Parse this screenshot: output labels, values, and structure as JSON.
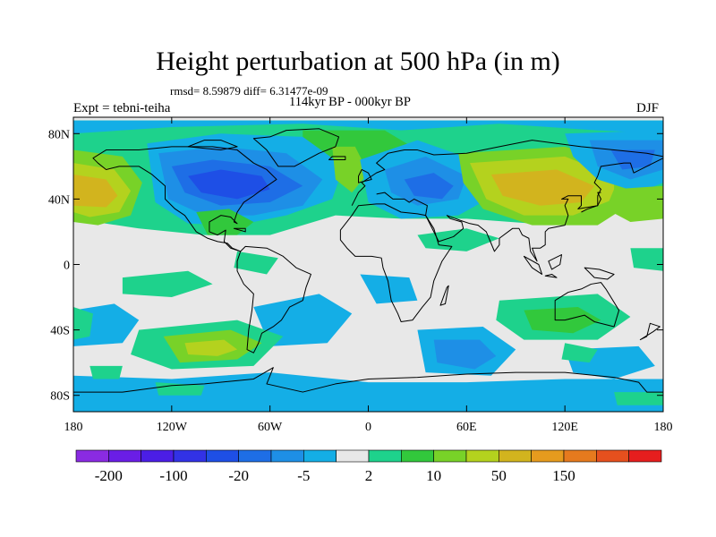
{
  "title": "Height perturbation at 500 hPa (in m)",
  "stats": "rmsd= 8.59879 diff= 6.31477e-09",
  "period": "114kyr BP - 000kyr BP",
  "experiment": "Expt = tebni-teiha",
  "season": "DJF",
  "lat_ticks": [
    {
      "label": "80N",
      "lat": 80
    },
    {
      "label": "40N",
      "lat": 40
    },
    {
      "label": "0",
      "lat": 0
    },
    {
      "label": "40S",
      "lat": -40
    },
    {
      "label": "80S",
      "lat": -80
    }
  ],
  "lon_ticks": [
    {
      "label": "180",
      "lon": -180
    },
    {
      "label": "120W",
      "lon": -120
    },
    {
      "label": "60W",
      "lon": -60
    },
    {
      "label": "0",
      "lon": 0
    },
    {
      "label": "60E",
      "lon": 60
    },
    {
      "label": "120E",
      "lon": 120
    },
    {
      "label": "180",
      "lon": 180
    }
  ],
  "colorbar": {
    "colors": [
      "#8a2be2",
      "#6a1ee6",
      "#4b1ee6",
      "#3232e6",
      "#1e4fe6",
      "#1e6ee6",
      "#1e8fe6",
      "#14aee6",
      "#e8e8e8",
      "#1ed28c",
      "#32c83c",
      "#78d228",
      "#b4d21e",
      "#d2b41e",
      "#e69b1e",
      "#e67a1e",
      "#e6501e",
      "#e61e1e"
    ],
    "labels": [
      "-200",
      "-100",
      "-20",
      "-5",
      "2",
      "10",
      "50",
      "150"
    ],
    "label_boundaries": [
      1,
      3,
      5,
      7,
      9,
      11,
      13,
      15
    ]
  },
  "anomaly_field": {
    "background_color": "#e8e8e8",
    "features": [
      {
        "kind": "positive",
        "lon": -170,
        "lat": 45,
        "level": 3
      },
      {
        "kind": "positive",
        "lon": 100,
        "lat": 50,
        "level": 3
      },
      {
        "kind": "positive",
        "lon": -95,
        "lat": -50,
        "level": 2
      },
      {
        "kind": "positive",
        "lon": 110,
        "lat": -35,
        "level": 1
      },
      {
        "kind": "negative",
        "lon": -90,
        "lat": 45,
        "level": 3
      },
      {
        "kind": "negative",
        "lon": 150,
        "lat": 65,
        "level": 2
      },
      {
        "kind": "negative",
        "lon": 40,
        "lat": 45,
        "level": 2
      },
      {
        "kind": "negative",
        "lon": 60,
        "lat": -45,
        "level": 2
      },
      {
        "kind": "negative",
        "lon": -50,
        "lat": -30,
        "level": 1
      },
      {
        "kind": "negative",
        "lon": 20,
        "lat": -15,
        "level": 1
      }
    ]
  }
}
